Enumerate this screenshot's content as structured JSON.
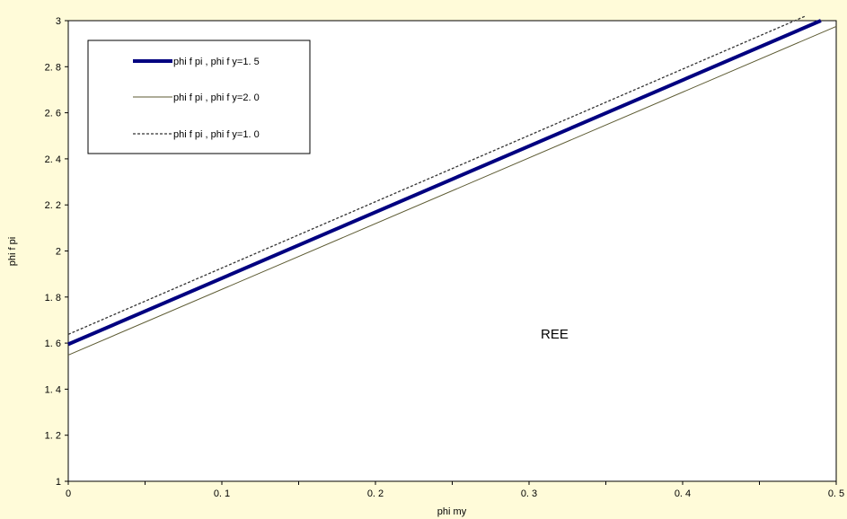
{
  "chart_data": {
    "type": "line",
    "xlabel": "phi my",
    "ylabel": "phi f pi",
    "xlim": [
      0,
      0.5
    ],
    "ylim": [
      1,
      3
    ],
    "x_ticks": [
      "0",
      "0. 1",
      "0. 2",
      "0. 3",
      "0. 4",
      "0. 5"
    ],
    "x_tick_values": [
      0,
      0.1,
      0.2,
      0.3,
      0.4,
      0.5
    ],
    "y_ticks": [
      "1",
      "1. 2",
      "1. 4",
      "1. 6",
      "1. 8",
      "2",
      "2. 2",
      "2. 4",
      "2. 6",
      "2. 8",
      "3"
    ],
    "y_tick_values": [
      1,
      1.2,
      1.4,
      1.6,
      1.8,
      2,
      2.2,
      2.4,
      2.6,
      2.8,
      3
    ],
    "grid": false,
    "legend_position": "top-left",
    "annotation": "REE",
    "series": [
      {
        "name": "phi f pi ,   phi f y=1. 5",
        "x": [
          0,
          0.49
        ],
        "y": [
          1.595,
          3.0
        ],
        "color": "#000080",
        "style": "solid-thick"
      },
      {
        "name": "phi f pi ,   phi f y=2. 0",
        "x": [
          0,
          0.5
        ],
        "y": [
          1.548,
          2.975
        ],
        "color": "#5c5a32",
        "style": "solid-thin"
      },
      {
        "name": "phi f pi ,   phi f y=1. 0",
        "x": [
          0,
          0.48
        ],
        "y": [
          1.638,
          3.02
        ],
        "color": "#333333",
        "style": "dotted"
      }
    ],
    "colors": {
      "background": "#fffbd9",
      "plot_area": "#ffffff"
    }
  }
}
